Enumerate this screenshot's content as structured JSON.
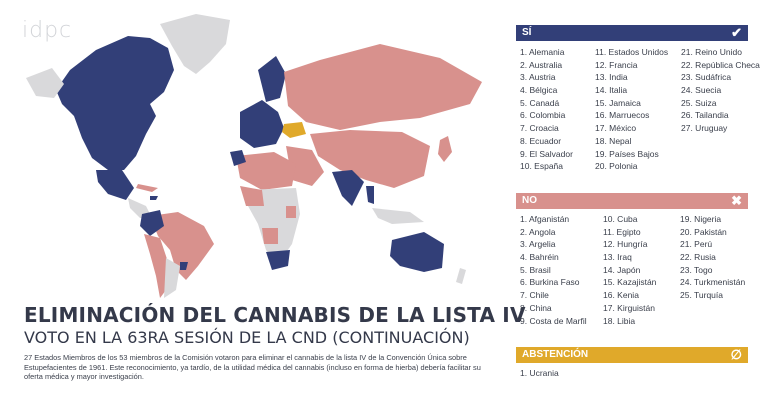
{
  "logo": "idpc",
  "title": "ELIMINACIÓN DEL CANNABIS DE LA LISTA IV",
  "subtitle": "VOTO EN LA 63RA SESIÓN DE LA CND (CONTINUACIÓN)",
  "description": "27 Estados Miembros de los 53 miembros de la Comisión votaron para eliminar el cannabis de la lista IV de la Convención Única sobre Estupefacientes de 1961. Este reconocimiento, ya tardío, de la utilidad médica del cannabis (incluso en forma de hierba) debería facilitar su oferta médica y mayor investigación.",
  "colors": {
    "si": "#323f78",
    "no": "#d8918d",
    "abstencion": "#e0a92a",
    "none": "#d9d9db"
  },
  "si": {
    "label": "SÍ",
    "icon": "check-icon",
    "col1": [
      "1. Alemania",
      "2. Australia",
      "3. Austria",
      "4. Bélgica",
      "5. Canadá",
      "6. Colombia",
      "7. Croacia",
      "8. Ecuador",
      "9. El Salvador",
      "10. España"
    ],
    "col2": [
      "11. Estados Unidos",
      "12. Francia",
      "13. India",
      "14. Italia",
      "15. Jamaica",
      "16. Marruecos",
      "17. México",
      "18. Nepal",
      "19. Países Bajos",
      "20. Polonia"
    ],
    "col3": [
      "21. Reino Unido",
      "22. República Checa",
      "23. Sudáfrica",
      "24. Suecia",
      "25. Suiza",
      "26. Tailandia",
      "27. Uruguay"
    ]
  },
  "no": {
    "label": "NO",
    "icon": "cross-icon",
    "col1": [
      "1. Afganistán",
      "2. Angola",
      "3. Argelia",
      "4. Bahréin",
      "5. Brasil",
      "6. Burkina Faso",
      "7. Chile",
      "8. China",
      "9. Costa de Marfil"
    ],
    "col2": [
      "10. Cuba",
      "11. Egipto",
      "12. Hungría",
      "13. Iraq",
      "14. Japón",
      "15. Kazajistán",
      "16. Kenia",
      "17. Kirguistán",
      "18. Libia"
    ],
    "col3": [
      "19. Nigeria",
      "20. Pakistán",
      "21. Perú",
      "22. Rusia",
      "23. Togo",
      "24. Turkmenistán",
      "25. Turquía"
    ]
  },
  "abstencion": {
    "label": "ABSTENCIÓN",
    "icon": "empty-set-icon",
    "col1": [
      "1. Ucrania"
    ]
  }
}
